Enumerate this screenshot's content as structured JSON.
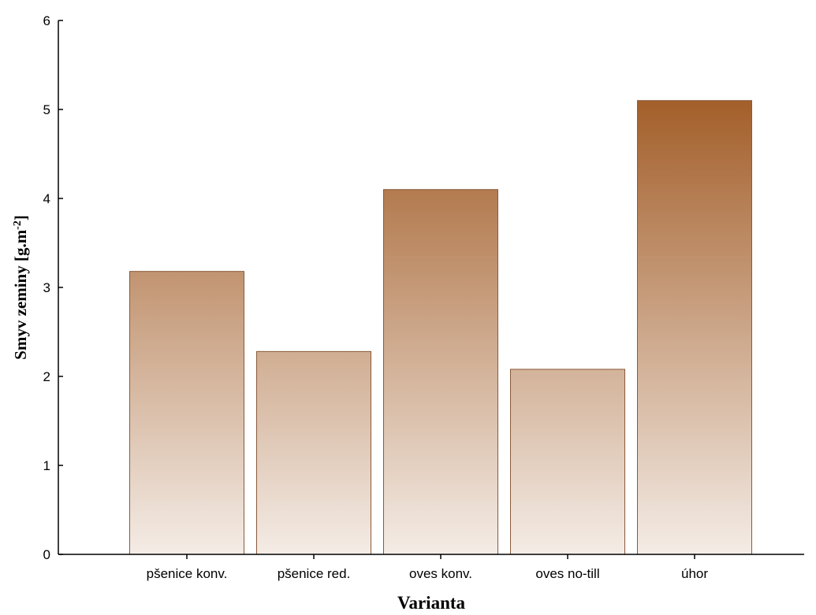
{
  "chart_data": {
    "type": "bar",
    "categories": [
      "pšenice konv.",
      "pšenice red.",
      "oves konv.",
      "oves no-till",
      "úhor"
    ],
    "values": [
      3.18,
      2.28,
      4.1,
      2.08,
      5.1
    ],
    "title": "",
    "xlabel": "Varianta",
    "ylabel": {
      "text": "Smyv zeminy [g.m",
      "superscript": "-2",
      "suffix": "]"
    },
    "ylim": [
      0,
      6
    ],
    "yticks": [
      "0",
      "1",
      "2",
      "3",
      "4",
      "5",
      "6"
    ],
    "grid": false,
    "colors": {
      "bar_top": "#a35f2a",
      "bar_bottom": "#f4ece6",
      "bar_stroke": "#8a5a3a"
    }
  }
}
